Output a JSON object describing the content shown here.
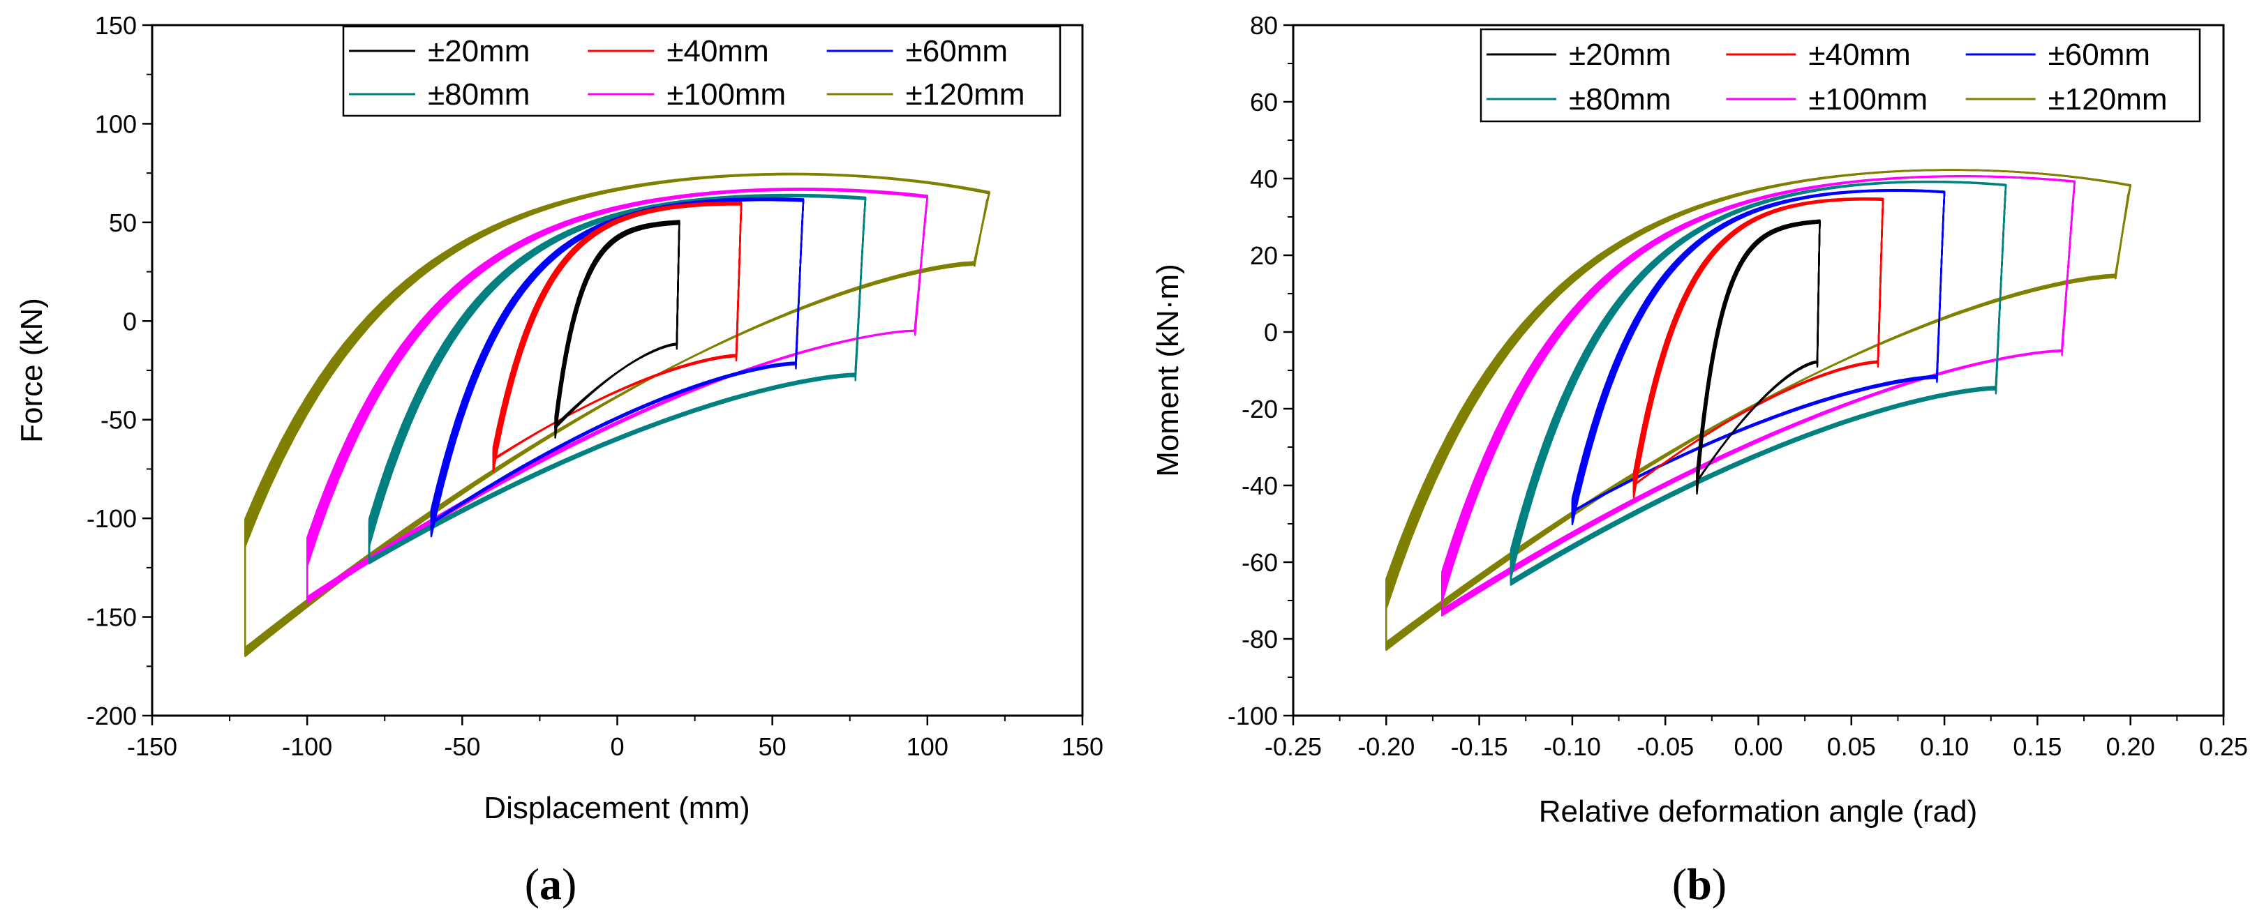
{
  "chart_data": [
    {
      "id": "a",
      "type": "line",
      "subtype": "hysteresis-loops",
      "caption_open": "(",
      "caption_letter": "a",
      "caption_close": ")",
      "title": "",
      "xlabel": "Displacement (mm)",
      "ylabel": "Force (kN)",
      "xlim": [
        -150,
        150
      ],
      "ylim": [
        -200,
        150
      ],
      "xticks": [
        -150,
        -100,
        -50,
        0,
        50,
        100,
        150
      ],
      "xtick_labels": [
        "-150",
        "-100",
        "-50",
        "0",
        "50",
        "100",
        "150"
      ],
      "yticks": [
        -200,
        -150,
        -100,
        -50,
        0,
        50,
        100,
        150
      ],
      "ytick_labels": [
        "-200",
        "-150",
        "-100",
        "-50",
        "0",
        "50",
        "100",
        "150"
      ],
      "grid": false,
      "legend": "top-right",
      "series": [
        {
          "name": "±20mm",
          "color": "#000000",
          "amp": 20,
          "peak_pos": 52,
          "peak_neg": -55,
          "cap_pos": 52,
          "upper_neg": -55,
          "lower_pos": -12,
          "cycles": 10
        },
        {
          "name": "±40mm",
          "color": "#ff0000",
          "amp": 40,
          "peak_pos": 62,
          "peak_neg": -72,
          "cap_pos": 63,
          "upper_neg": -72,
          "lower_pos": -18,
          "cycles": 10
        },
        {
          "name": "±60mm",
          "color": "#0000ff",
          "amp": 60,
          "peak_pos": 64,
          "peak_neg": -105,
          "cap_pos": 67,
          "upper_neg": -105,
          "lower_pos": -22,
          "cycles": 10
        },
        {
          "name": "±80mm",
          "color": "#008080",
          "amp": 80,
          "peak_pos": 65,
          "peak_neg": -125,
          "cap_pos": 70,
          "upper_neg": -110,
          "lower_pos": -28,
          "cycles": 10
        },
        {
          "name": "±100mm",
          "color": "#ff00ff",
          "amp": 100,
          "peak_pos": 66,
          "peak_neg": -145,
          "cap_pos": 75,
          "upper_neg": -120,
          "lower_pos": -5,
          "cycles": 10
        },
        {
          "name": "±120mm",
          "color": "#808000",
          "amp": 120,
          "peak_pos": 68,
          "peak_neg": -172,
          "cap_pos": 85,
          "upper_neg": -110,
          "lower_pos": 30,
          "cycles": 10
        }
      ]
    },
    {
      "id": "b",
      "type": "line",
      "subtype": "hysteresis-loops",
      "caption_open": "(",
      "caption_letter": "b",
      "caption_close": ")",
      "title": "",
      "xlabel": "Relative deformation angle (rad)",
      "ylabel": "Moment (kN·m)",
      "xlim": [
        -0.25,
        0.25
      ],
      "ylim": [
        -100,
        80
      ],
      "xticks": [
        -0.25,
        -0.2,
        -0.15,
        -0.1,
        -0.05,
        0,
        0.05,
        0.1,
        0.15,
        0.2,
        0.25
      ],
      "xtick_labels": [
        "-0.25",
        "-0.20",
        "-0.15",
        "-0.10",
        "-0.05",
        "0.00",
        "0.05",
        "0.10",
        "0.15",
        "0.20",
        "0.25"
      ],
      "yticks": [
        -100,
        -80,
        -60,
        -40,
        -20,
        0,
        20,
        40,
        60,
        80
      ],
      "ytick_labels": [
        "-100",
        "-80",
        "-60",
        "-40",
        "-20",
        "0",
        "20",
        "40",
        "60",
        "80"
      ],
      "grid": false,
      "legend": "top-right",
      "series": [
        {
          "name": "±20mm",
          "color": "#000000",
          "amp": 0.033,
          "peak_pos": 30,
          "peak_neg": -40,
          "cap_pos": 30,
          "upper_neg": -40,
          "lower_pos": -8,
          "cycles": 10
        },
        {
          "name": "±40mm",
          "color": "#ff0000",
          "amp": 0.067,
          "peak_pos": 36,
          "peak_neg": -41,
          "cap_pos": 37,
          "upper_neg": -41,
          "lower_pos": -8,
          "cycles": 10
        },
        {
          "name": "±60mm",
          "color": "#0000ff",
          "amp": 0.1,
          "peak_pos": 38,
          "peak_neg": -48,
          "cap_pos": 40,
          "upper_neg": -48,
          "lower_pos": -12,
          "cycles": 10
        },
        {
          "name": "±80mm",
          "color": "#008080",
          "amp": 0.133,
          "peak_pos": 40,
          "peak_neg": -67,
          "cap_pos": 43,
          "upper_neg": -62,
          "lower_pos": -15,
          "cycles": 10
        },
        {
          "name": "±100mm",
          "color": "#ff00ff",
          "amp": 0.17,
          "peak_pos": 41,
          "peak_neg": -75,
          "cap_pos": 45,
          "upper_neg": -68,
          "lower_pos": -5,
          "cycles": 10
        },
        {
          "name": "±120mm",
          "color": "#808000",
          "amp": 0.2,
          "peak_pos": 40,
          "peak_neg": -84,
          "cap_pos": 48,
          "upper_neg": -70,
          "lower_pos": 15,
          "cycles": 10
        }
      ]
    }
  ]
}
